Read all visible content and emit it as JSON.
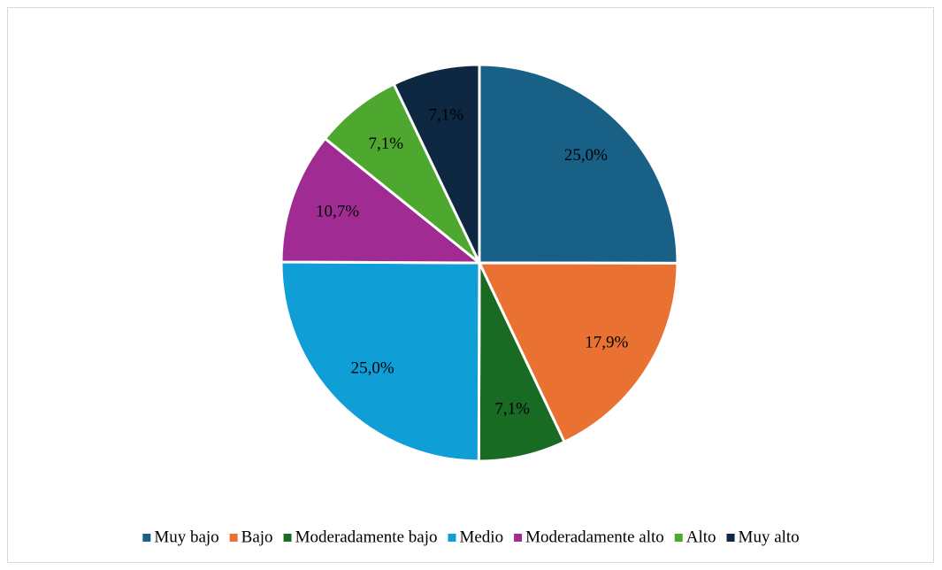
{
  "chart_data": {
    "type": "pie",
    "categories": [
      "Muy bajo",
      "Bajo",
      "Moderadamente bajo",
      "Medio",
      "Moderadamente alto",
      "Alto",
      "Muy alto"
    ],
    "values": [
      25.0,
      17.9,
      7.1,
      25.0,
      10.7,
      7.1,
      7.1
    ],
    "value_labels": [
      "25,0%",
      "17,9%",
      "7,1%",
      "25,0%",
      "10,7%",
      "7,1%",
      "7,1%"
    ],
    "colors": [
      "#196086",
      "#e97132",
      "#196b24",
      "#0f9ed5",
      "#a02b93",
      "#4ea72e",
      "#0e2841"
    ],
    "legend": "bottom"
  }
}
